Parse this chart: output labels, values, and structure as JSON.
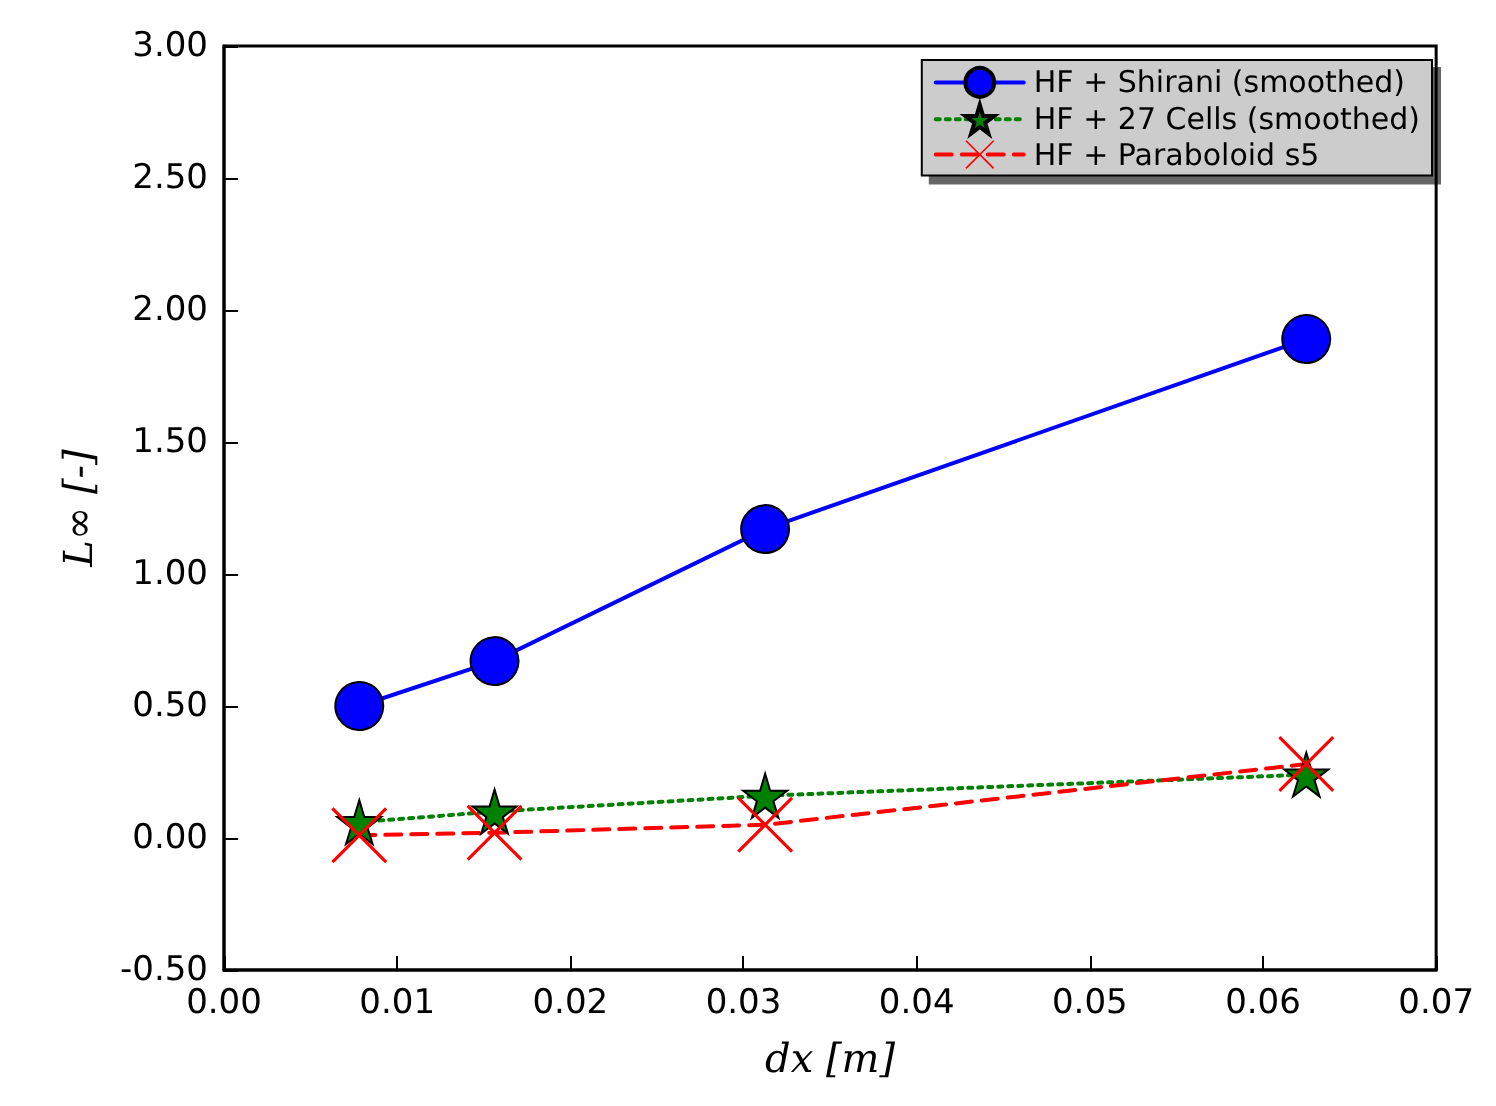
{
  "chart_data": {
    "type": "line",
    "xlabel": "dx [m]",
    "ylabel": "L∞ [-]",
    "xlim": [
      0,
      0.07
    ],
    "xticks": [
      {
        "value": 0,
        "label": "0.00"
      },
      {
        "value": 0.01,
        "label": "0.01"
      },
      {
        "value": 0.02,
        "label": "0.02"
      },
      {
        "value": 0.03,
        "label": "0.03"
      },
      {
        "value": 0.04,
        "label": "0.04"
      },
      {
        "value": 0.05,
        "label": "0.05"
      },
      {
        "value": 0.06,
        "label": "0.06"
      },
      {
        "value": 0.07,
        "label": "0.07"
      }
    ],
    "ylim": [
      -0.5,
      3
    ],
    "yticks": [
      {
        "value": -0.5,
        "label": "-0.50"
      },
      {
        "value": 0,
        "label": "0.00"
      },
      {
        "value": 0.5,
        "label": "0.50"
      },
      {
        "value": 1,
        "label": "1.00"
      },
      {
        "value": 1.5,
        "label": "1.50"
      },
      {
        "value": 2,
        "label": "2.00"
      },
      {
        "value": 2.5,
        "label": "2.50"
      },
      {
        "value": 3,
        "label": "3.00"
      }
    ],
    "x": [
      0.0078125,
      0.015625,
      0.03125,
      0.0625
    ],
    "grid": false,
    "legend": "top right",
    "series": [
      {
        "name": "HF + Shirani (smoothed)",
        "color": "#0000ff",
        "values": [
          0.5,
          0.67,
          1.17,
          1.89
        ],
        "marker": "circle",
        "line_style": "solid"
      },
      {
        "name": "HF + 27 Cells (smoothed)",
        "color": "#008000",
        "values": [
          0.06,
          0.1,
          0.16,
          0.24
        ],
        "marker": "star",
        "line_style": "dotted"
      },
      {
        "name": "HF + Paraboloid s5",
        "color": "#ff0000",
        "values": [
          0.01,
          0.02,
          0.05,
          0.28
        ],
        "marker": "cross",
        "line_style": "dashed"
      }
    ]
  }
}
